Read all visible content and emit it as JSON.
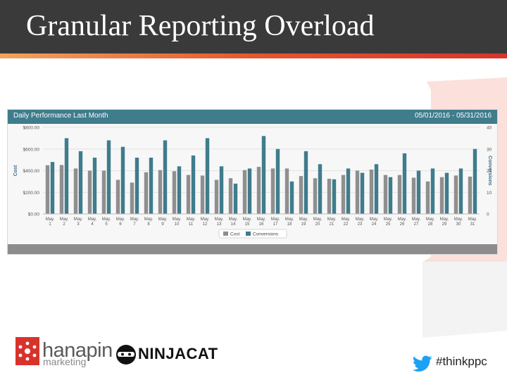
{
  "slide": {
    "title": "Granular Reporting Overload",
    "hashtag": "#thinkppc"
  },
  "panel": {
    "title": "Daily Performance Last Month",
    "date_range": "05/01/2016 - 05/31/2016"
  },
  "logos": {
    "hanapin_word": "hanapin",
    "hanapin_sub": "marketing",
    "ninjacat_word": "NINJACAT"
  },
  "colors": {
    "header_bg": "#3a3a3a",
    "accent_red": "#d8332b",
    "accent_orange": "#f0a35c",
    "panel_header": "#3f7c8c",
    "cost_bar": "#8f8f8f",
    "conversions_bar": "#3f7c8c",
    "twitter_blue": "#1da1f2"
  },
  "chart_data": {
    "type": "bar",
    "categories": [
      "May. 1",
      "May. 2",
      "May. 3",
      "May. 4",
      "May. 5",
      "May. 6",
      "May. 7",
      "May. 8",
      "May. 9",
      "May. 10",
      "May. 11",
      "May. 12",
      "May. 13",
      "May. 14",
      "May. 15",
      "May. 16",
      "May. 17",
      "May. 18",
      "May. 19",
      "May. 20",
      "May. 21",
      "May. 22",
      "May. 23",
      "May. 24",
      "May. 25",
      "May. 26",
      "May. 27",
      "May. 28",
      "May. 29",
      "May. 30",
      "May. 31"
    ],
    "series": [
      {
        "name": "Cost",
        "axis": "left",
        "color": "#8f8f8f",
        "values": [
          450,
          452,
          420,
          400,
          400,
          315,
          290,
          385,
          405,
          395,
          360,
          355,
          315,
          330,
          405,
          435,
          420,
          420,
          350,
          330,
          325,
          360,
          400,
          410,
          360,
          360,
          335,
          300,
          340,
          355,
          345
        ]
      },
      {
        "name": "Conversions",
        "axis": "right",
        "color": "#3f7c8c",
        "values": [
          24,
          35,
          29,
          26,
          34,
          31,
          26,
          26,
          34,
          22,
          27,
          35,
          22,
          14,
          21,
          36,
          30,
          15,
          29,
          23,
          16,
          21,
          19,
          23,
          17,
          28,
          20,
          21,
          19,
          21,
          30
        ]
      }
    ],
    "ylabel": "Cost",
    "y2label": "Conversions",
    "ylim": [
      0,
      800
    ],
    "y2lim": [
      0,
      40
    ],
    "yticks": [
      "$0.00",
      "$200.00",
      "$400.00",
      "$600.00",
      "$800.00"
    ],
    "y2ticks": [
      "0",
      "10",
      "20",
      "30",
      "40"
    ],
    "grid": true,
    "legend": "bottom-center"
  }
}
